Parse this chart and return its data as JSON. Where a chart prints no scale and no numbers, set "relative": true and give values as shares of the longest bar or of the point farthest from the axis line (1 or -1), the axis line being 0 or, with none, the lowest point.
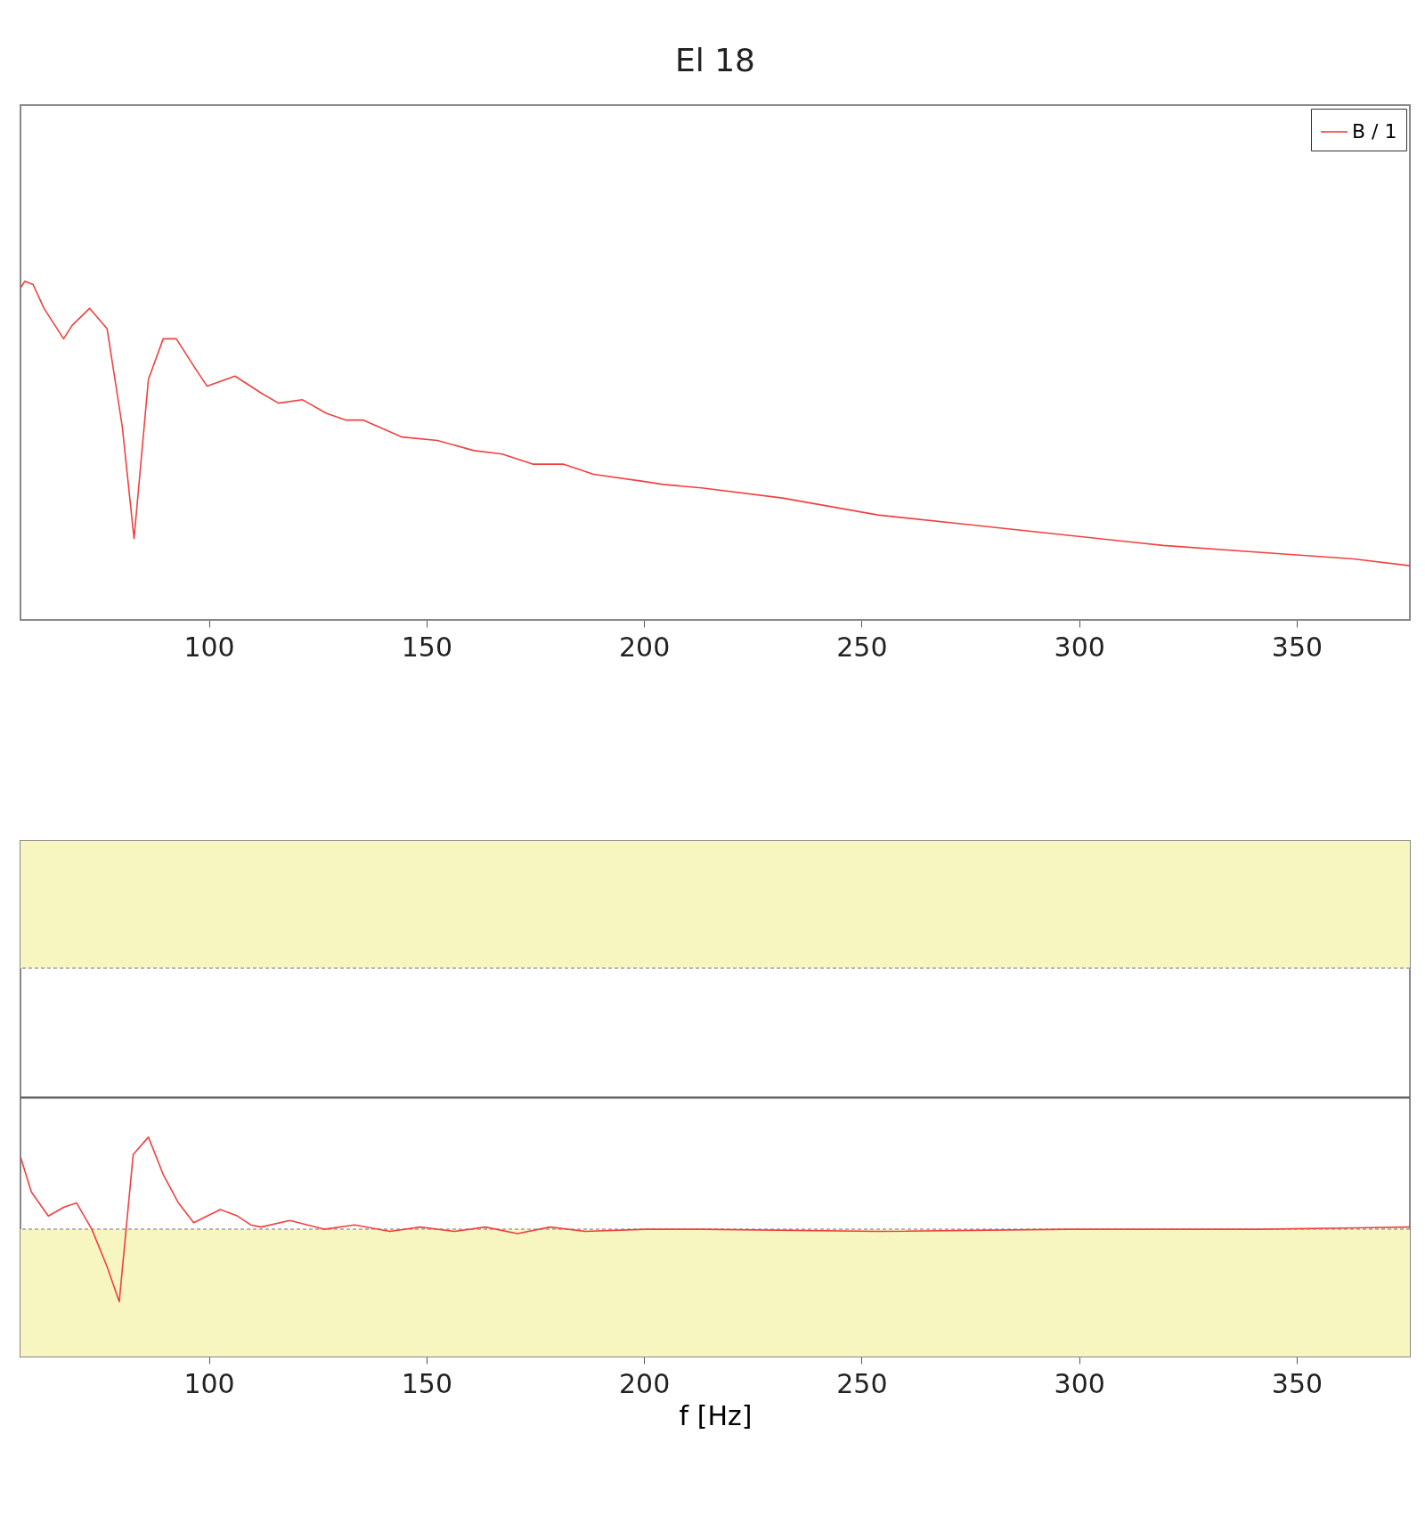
{
  "chart_data": [
    {
      "type": "line",
      "title": "El 18",
      "relative": true,
      "xlim": [
        56.7,
        376
      ],
      "xticks": [
        100,
        150,
        200,
        250,
        300,
        350
      ],
      "tick_labels": "x",
      "legend": "top right",
      "series": [
        {
          "name": "B / 1",
          "color": "#f04040",
          "x": [
            56.7,
            57.7,
            59.6,
            62.1,
            66.6,
            68.6,
            72.6,
            76.6,
            80.1,
            82.8,
            86.1,
            89.5,
            92.5,
            97.0,
            99.6,
            106.0,
            112.0,
            116.0,
            121.5,
            127.0,
            131.5,
            135.5,
            144.4,
            152.5,
            160.9,
            167.4,
            174.4,
            181.4,
            188.4,
            199.4,
            204.4,
            213.2,
            231.8,
            253.7,
            275.6,
            297.5,
            319.3,
            341.2,
            363.1,
            376.0
          ],
          "values": [
            0.98,
            1.0,
            0.99,
            0.92,
            0.83,
            0.87,
            0.92,
            0.86,
            0.57,
            0.24,
            0.71,
            0.83,
            0.83,
            0.74,
            0.69,
            0.72,
            0.67,
            0.64,
            0.65,
            0.61,
            0.59,
            0.59,
            0.54,
            0.53,
            0.5,
            0.49,
            0.46,
            0.46,
            0.43,
            0.41,
            0.4,
            0.39,
            0.36,
            0.31,
            0.28,
            0.25,
            0.22,
            0.2,
            0.18,
            0.16
          ]
        }
      ]
    },
    {
      "type": "line",
      "relative": true,
      "xlabel": "f   [Hz]",
      "xlim": [
        56.7,
        376
      ],
      "xticks": [
        100,
        150,
        200,
        250,
        300,
        350
      ],
      "tick_labels": "x",
      "bands": [
        {
          "axis": "y",
          "from": 0,
          "to": 0.58,
          "color": "#f7f5c0"
        },
        {
          "axis": "y",
          "from": 1.77,
          "to": 2.35,
          "color": "#f7f5c0"
        }
      ],
      "ref_lines": [
        {
          "axis": "y",
          "value": 0.58,
          "color": "#a0a0a0",
          "line_style": "dashed"
        },
        {
          "axis": "y",
          "value": 1.18,
          "color": "#666666",
          "line_style": "solid"
        },
        {
          "axis": "y",
          "value": 1.77,
          "color": "#a0a0a0",
          "line_style": "dashed"
        }
      ],
      "series": [
        {
          "color": "#f04040",
          "x": [
            56.7,
            59.2,
            63.1,
            66.6,
            69.6,
            73.1,
            76.6,
            79.4,
            82.6,
            86.1,
            89.5,
            93.0,
            96.5,
            102.6,
            106.6,
            109.6,
            112.0,
            118.6,
            126.5,
            133.5,
            141.6,
            148.6,
            156.5,
            163.5,
            170.9,
            178.4,
            186.5,
            200.5,
            213.2,
            253.7,
            297.5,
            341.2,
            376.0
          ],
          "values": [
            0.91,
            0.75,
            0.64,
            0.68,
            0.7,
            0.58,
            0.41,
            0.25,
            0.92,
            1.0,
            0.83,
            0.7,
            0.61,
            0.67,
            0.64,
            0.6,
            0.59,
            0.62,
            0.58,
            0.6,
            0.57,
            0.59,
            0.57,
            0.59,
            0.56,
            0.59,
            0.57,
            0.58,
            0.58,
            0.57,
            0.58,
            0.58,
            0.59
          ]
        }
      ]
    }
  ]
}
